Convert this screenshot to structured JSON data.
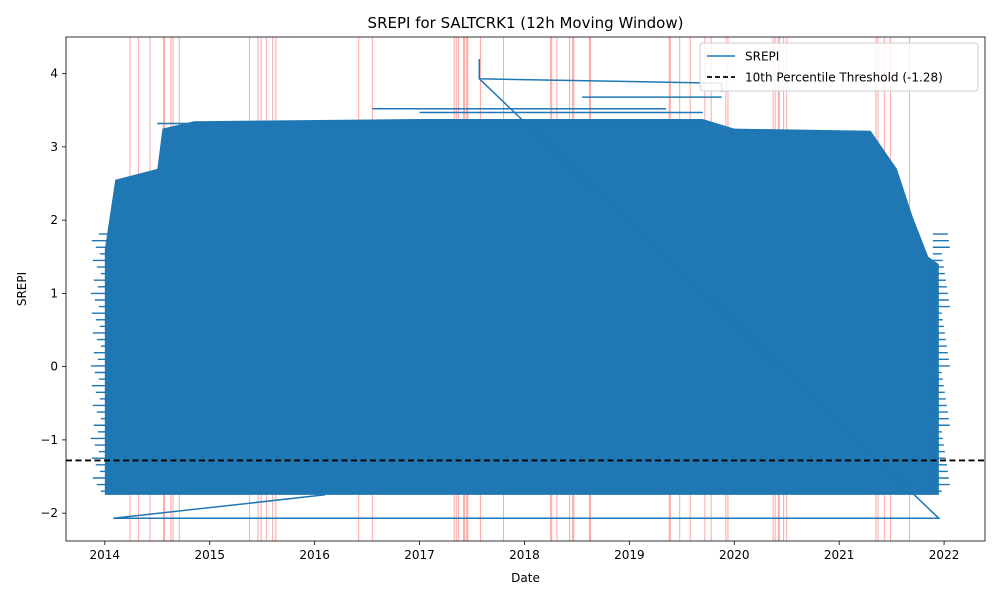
{
  "chart_data": {
    "type": "line",
    "title": "SREPI for SALTCRK1 (12h Moving Window)",
    "xlabel": "Date",
    "ylabel": "SREPI",
    "x_ticks": [
      "2014",
      "2015",
      "2016",
      "2017",
      "2018",
      "2019",
      "2020",
      "2021",
      "2022"
    ],
    "y_ticks": [
      -2,
      -1,
      0,
      1,
      2,
      3,
      4
    ],
    "y_tick_labels": [
      "−2",
      "−1",
      "0",
      "1",
      "2",
      "3",
      "4"
    ],
    "xlim": [
      2013.63,
      2022.39
    ],
    "ylim": [
      -2.38,
      4.5
    ],
    "grid": false,
    "legend_position": "top-right",
    "series": [
      {
        "name": "SREPI",
        "color": "#1f77b4",
        "fill_band": {
          "x_start": 2014.0,
          "x_end": 2021.95,
          "y_low": -1.75,
          "y_high_start": 1.6,
          "y_high_end": 1.4,
          "y_high_peak": 3.35
        },
        "points": [
          {
            "x": 2014.08,
            "y": -2.07
          },
          {
            "x": 2016.1,
            "y": -1.75
          },
          {
            "x": 2014.08,
            "y": -2.07
          },
          {
            "x": 2021.95,
            "y": -2.07
          },
          {
            "x": 2017.57,
            "y": 3.93
          },
          {
            "x": 2017.57,
            "y": 4.2
          },
          {
            "x": 2017.57,
            "y": 3.93
          },
          {
            "x": 2019.88,
            "y": 3.87
          },
          {
            "x": 2019.88,
            "y": 3.75
          }
        ]
      }
    ],
    "threshold": {
      "label": "10th Percentile Threshold (-1.28)",
      "value": -1.28,
      "color": "#000000",
      "style": "dashed"
    },
    "highlight_color": "#ff0000",
    "highlight_dates": [
      2014.24,
      2014.32,
      2014.43,
      2014.56,
      2014.57,
      2014.63,
      2014.65,
      2014.71,
      2015.38,
      2015.46,
      2015.49,
      2015.54,
      2015.6,
      2015.63,
      2016.42,
      2016.55,
      2017.33,
      2017.35,
      2017.37,
      2017.42,
      2017.43,
      2017.45,
      2017.46,
      2017.58,
      2017.8,
      2018.25,
      2018.26,
      2018.31,
      2018.43,
      2018.46,
      2018.47,
      2018.62,
      2018.63,
      2019.38,
      2019.39,
      2019.48,
      2019.58,
      2019.72,
      2019.78,
      2019.92,
      2019.94,
      2020.37,
      2020.39,
      2020.42,
      2020.43,
      2020.47,
      2020.5,
      2021.35,
      2021.37,
      2021.43,
      2021.49,
      2021.67
    ]
  }
}
